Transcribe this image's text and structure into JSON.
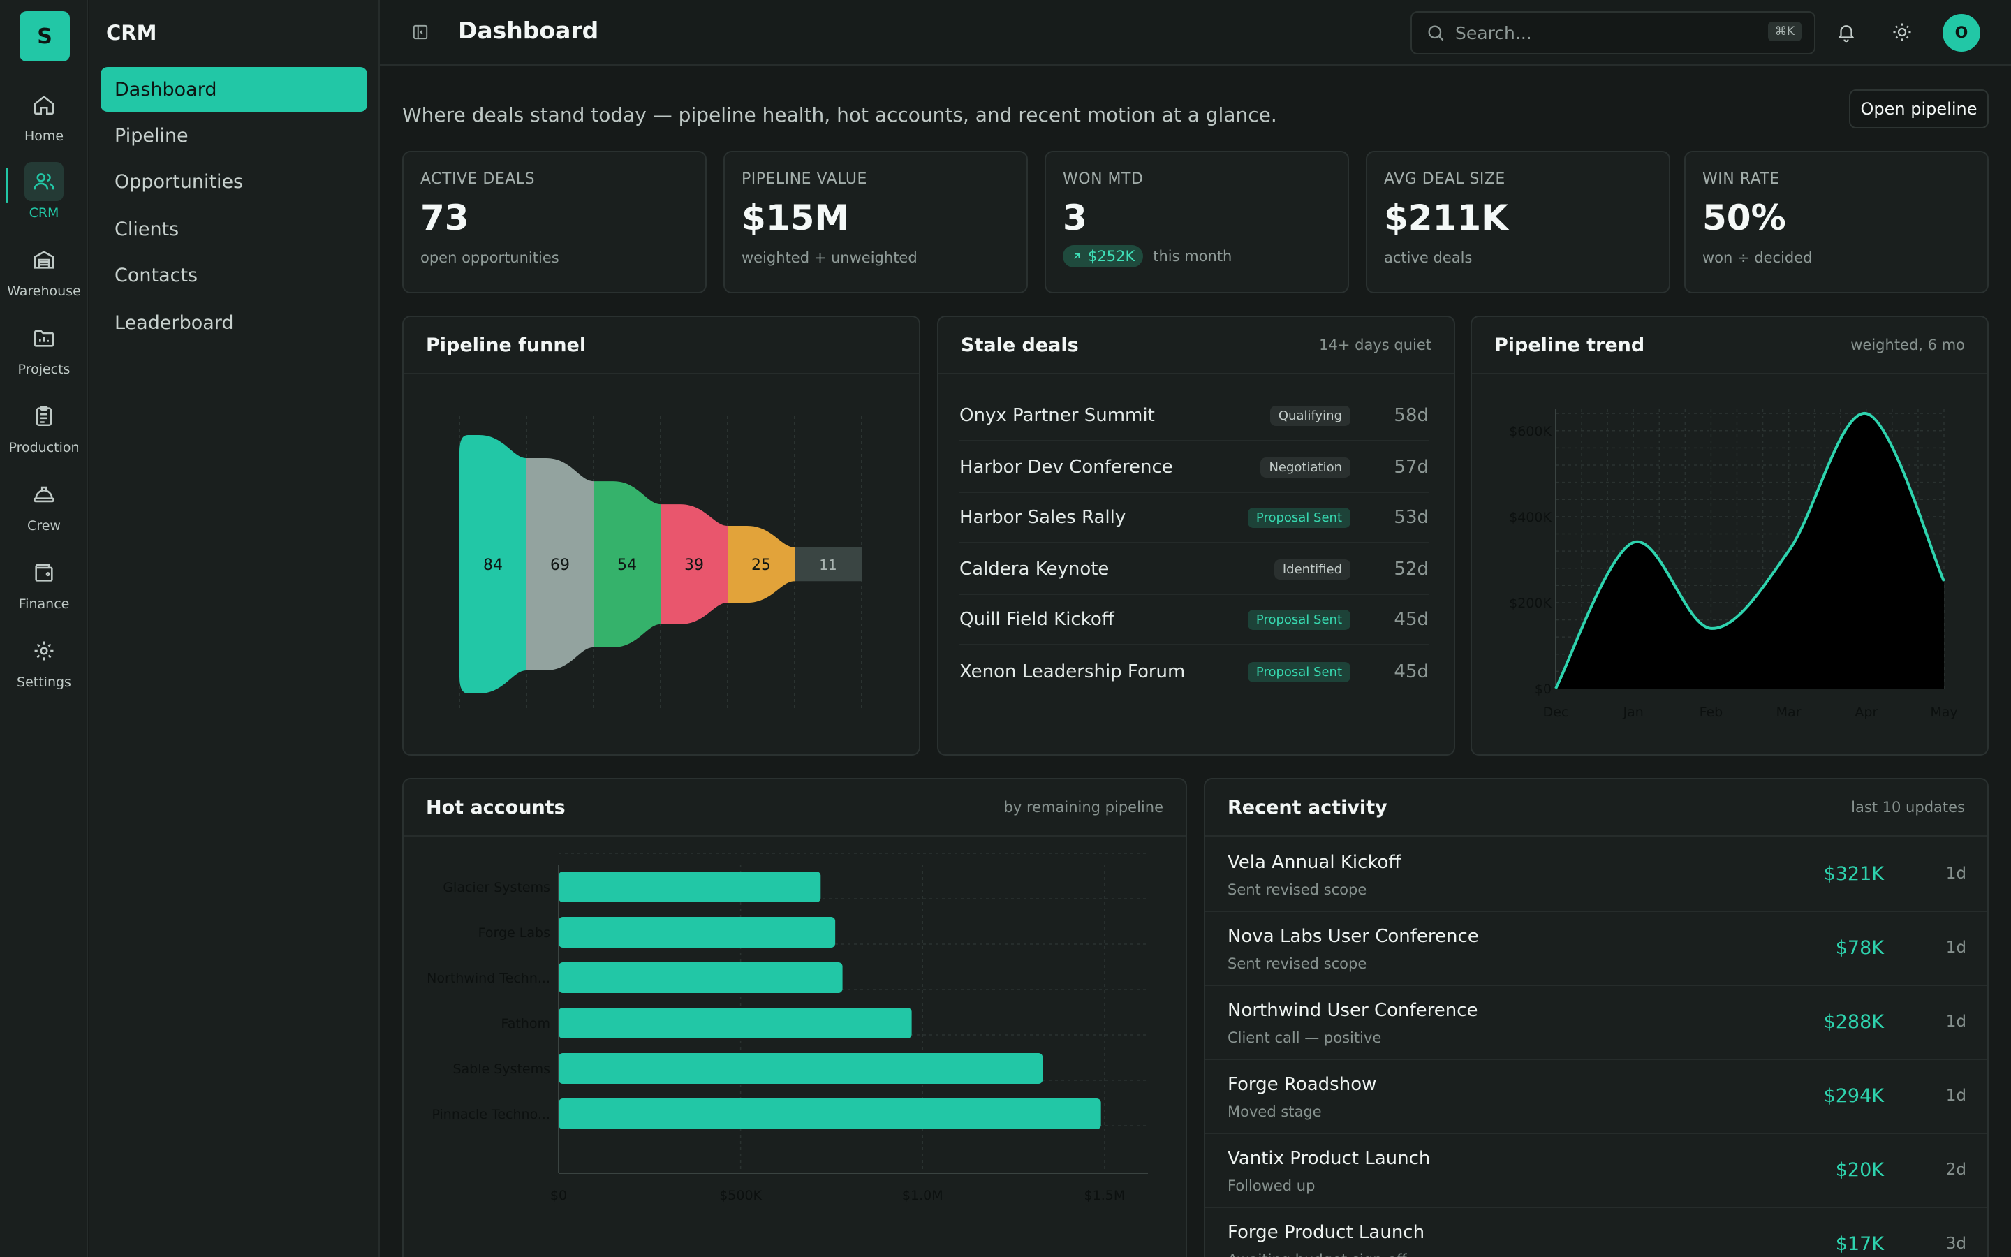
{
  "app": {
    "logo_letter": "S",
    "accent": "#22c7a6"
  },
  "rail": {
    "items": [
      {
        "label": "Home",
        "icon": "home-icon"
      },
      {
        "label": "CRM",
        "icon": "users-icon",
        "active": true
      },
      {
        "label": "Warehouse",
        "icon": "warehouse-icon"
      },
      {
        "label": "Projects",
        "icon": "folder-chart-icon"
      },
      {
        "label": "Production",
        "icon": "clipboard-icon"
      },
      {
        "label": "Crew",
        "icon": "hard-hat-icon"
      },
      {
        "label": "Finance",
        "icon": "wallet-icon"
      },
      {
        "label": "Settings",
        "icon": "gear-icon"
      }
    ]
  },
  "subnav": {
    "title": "CRM",
    "items": [
      {
        "label": "Dashboard",
        "active": true
      },
      {
        "label": "Pipeline"
      },
      {
        "label": "Opportunities"
      },
      {
        "label": "Clients"
      },
      {
        "label": "Contacts"
      },
      {
        "label": "Leaderboard"
      }
    ]
  },
  "header": {
    "title": "Dashboard",
    "search_placeholder": "Search...",
    "search_shortcut": "⌘K",
    "avatar_initial": "O"
  },
  "page": {
    "subtitle": "Where deals stand today — pipeline health, hot accounts, and recent motion at a glance.",
    "open_pipeline_label": "Open pipeline"
  },
  "kpis": [
    {
      "label": "ACTIVE DEALS",
      "value": "73",
      "sub": "open opportunities"
    },
    {
      "label": "PIPELINE VALUE",
      "value": "$15M",
      "sub": "weighted + unweighted"
    },
    {
      "label": "WON MTD",
      "value": "3",
      "delta": "$252K",
      "sub": "this month"
    },
    {
      "label": "AVG DEAL SIZE",
      "value": "$211K",
      "sub": "active deals"
    },
    {
      "label": "WIN RATE",
      "value": "50%",
      "sub": "won ÷ decided"
    }
  ],
  "funnel": {
    "title": "Pipeline funnel",
    "colors": [
      "#22c7a6",
      "#93a39f",
      "#35b26b",
      "#e9566d",
      "#e2a33a",
      "#3a4543"
    ]
  },
  "stale": {
    "title": "Stale deals",
    "hint": "14+ days quiet",
    "rows": [
      {
        "name": "Onyx Partner Summit",
        "stage": "Qualifying",
        "age": "58d"
      },
      {
        "name": "Harbor Dev Conference",
        "stage": "Negotiation",
        "age": "57d"
      },
      {
        "name": "Harbor Sales Rally",
        "stage": "Proposal Sent",
        "age": "53d"
      },
      {
        "name": "Caldera Keynote",
        "stage": "Identified",
        "age": "52d"
      },
      {
        "name": "Quill Field Kickoff",
        "stage": "Proposal Sent",
        "age": "45d"
      },
      {
        "name": "Xenon Leadership Forum",
        "stage": "Proposal Sent",
        "age": "45d"
      }
    ]
  },
  "trend": {
    "title": "Pipeline trend",
    "hint": "weighted, 6 mo"
  },
  "hot": {
    "title": "Hot accounts",
    "hint": "by remaining pipeline"
  },
  "activity": {
    "title": "Recent activity",
    "hint": "last 10 updates",
    "rows": [
      {
        "name": "Vela Annual Kickoff",
        "note": "Sent revised scope",
        "amount": "$321K",
        "age": "1d"
      },
      {
        "name": "Nova Labs User Conference",
        "note": "Sent revised scope",
        "amount": "$78K",
        "age": "1d"
      },
      {
        "name": "Northwind User Conference",
        "note": "Client call — positive",
        "amount": "$288K",
        "age": "1d"
      },
      {
        "name": "Forge Roadshow",
        "note": "Moved stage",
        "amount": "$294K",
        "age": "1d"
      },
      {
        "name": "Vantix Product Launch",
        "note": "Followed up",
        "amount": "$20K",
        "age": "2d"
      },
      {
        "name": "Forge Product Launch",
        "note": "Awaiting budget sign-off",
        "amount": "$17K",
        "age": "3d"
      }
    ]
  },
  "chart_data": [
    {
      "type": "bar",
      "chart": "funnel",
      "categories": [
        "",
        "",
        "",
        "",
        "",
        ""
      ],
      "values": [
        84,
        69,
        54,
        39,
        25,
        11
      ]
    },
    {
      "type": "area",
      "chart": "trend",
      "x": [
        "Dec",
        "Jan",
        "Feb",
        "Mar",
        "Apr",
        "May"
      ],
      "values": [
        0,
        340000,
        140000,
        320000,
        640000,
        250000
      ],
      "y_ticks": [
        "$0",
        "$200K",
        "$400K",
        "$600K"
      ],
      "ylim": [
        0,
        650000
      ],
      "grid": true
    },
    {
      "type": "bar",
      "chart": "hot_accounts",
      "orientation": "horizontal",
      "categories": [
        "Glacier Systems",
        "Forge Labs",
        "Northwind Techn...",
        "Fathom",
        "Sable Systems",
        "Pinnacle Techno..."
      ],
      "values": [
        720000,
        760000,
        780000,
        970000,
        1330000,
        1490000
      ],
      "x_ticks": [
        "$0",
        "$500K",
        "$1.0M",
        "$1.5M"
      ],
      "xlim": [
        0,
        1600000
      ],
      "grid": true
    }
  ]
}
